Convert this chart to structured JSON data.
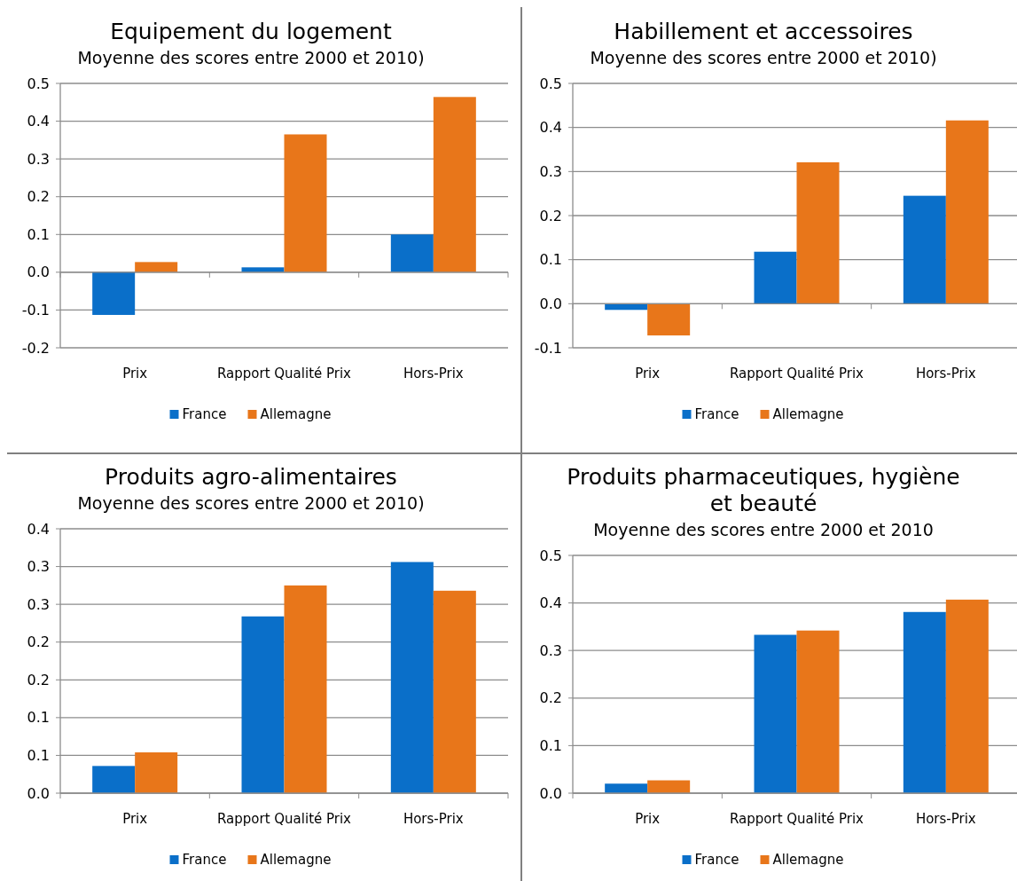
{
  "chart_data": [
    {
      "type": "bar",
      "title": "Equipement du logement",
      "subtitle": "Moyenne des scores entre 2000 et 2010)",
      "categories": [
        "Prix",
        "Rapport Qualité Prix",
        "Hors-Prix"
      ],
      "series": [
        {
          "name": "France",
          "color": "#0a6fc9",
          "values": [
            -0.113,
            0.013,
            0.1
          ]
        },
        {
          "name": "Allemagne",
          "color": "#e8761a",
          "values": [
            0.027,
            0.365,
            0.464
          ]
        }
      ],
      "ylim": [
        -0.2,
        0.5
      ],
      "yticks": [
        -0.2,
        -0.1,
        {
          "value": 0,
          "label": "0.0"
        },
        0.1,
        0.2,
        0.3,
        0.4,
        0.5
      ],
      "grid": "y",
      "legend": "bottom"
    },
    {
      "type": "bar",
      "title": "Habillement et accessoires",
      "subtitle": "Moyenne des scores entre 2000 et 2010)",
      "categories": [
        "Prix",
        "Rapport Qualité Prix",
        "Hors-Prix"
      ],
      "series": [
        {
          "name": "France",
          "color": "#0a6fc9",
          "values": [
            -0.014,
            0.118,
            0.245
          ]
        },
        {
          "name": "Allemagne",
          "color": "#e8761a",
          "values": [
            -0.072,
            0.321,
            0.416
          ]
        }
      ],
      "ylim": [
        -0.1,
        0.5
      ],
      "yticks": [
        -0.1,
        {
          "value": 0,
          "label": "0.0"
        },
        0.1,
        0.2,
        0.3,
        0.4,
        0.5
      ],
      "grid": "y",
      "legend": "bottom"
    },
    {
      "type": "bar",
      "title": "Produits agro-alimentaires",
      "subtitle": "Moyenne des scores entre 2000 et 2010)",
      "categories": [
        "Prix",
        "Rapport Qualité Prix",
        "Hors-Prix"
      ],
      "series": [
        {
          "name": "France",
          "color": "#0a6fc9",
          "values": [
            0.036,
            0.234,
            0.306
          ]
        },
        {
          "name": "Allemagne",
          "color": "#e8761a",
          "values": [
            0.054,
            0.275,
            0.268
          ]
        }
      ],
      "ylim": [
        0,
        0.35
      ],
      "yticks": [
        {
          "value": 0,
          "label": "0.0"
        },
        {
          "value": 0.05,
          "label": "0.1"
        },
        0.1,
        {
          "value": 0.15,
          "label": "0.2"
        },
        0.2,
        {
          "value": 0.25,
          "label": "0.3"
        },
        0.3,
        {
          "value": 0.35,
          "label": "0.4"
        }
      ],
      "grid": "y",
      "legend": "bottom"
    },
    {
      "type": "bar",
      "title": "Produits pharmaceutiques, hygiène et beauté",
      "subtitle": "Moyenne des scores entre 2000 et 2010",
      "categories": [
        "Prix",
        "Rapport Qualité Prix",
        "Hors-Prix"
      ],
      "series": [
        {
          "name": "France",
          "color": "#0a6fc9",
          "values": [
            0.02,
            0.333,
            0.381
          ]
        },
        {
          "name": "Allemagne",
          "color": "#e8761a",
          "values": [
            0.027,
            0.342,
            0.407
          ]
        }
      ],
      "ylim": [
        0,
        0.5
      ],
      "yticks": [
        {
          "value": 0,
          "label": "0.0"
        },
        0.1,
        0.2,
        0.3,
        0.4,
        0.5
      ],
      "grid": "y",
      "legend": "bottom"
    }
  ]
}
